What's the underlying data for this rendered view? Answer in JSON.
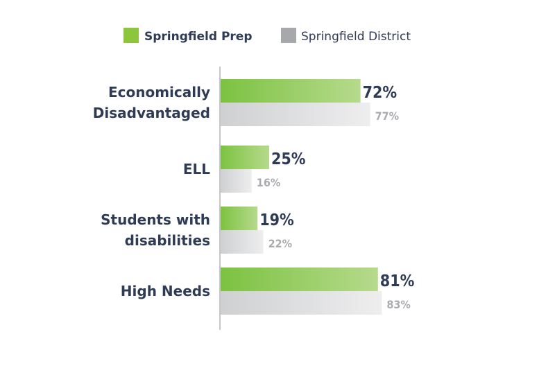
{
  "colors": {
    "primary_start": "#7cc241",
    "primary_end": "#b6da8c",
    "secondary_start": "#cfd0d2",
    "secondary_end": "#eeeeef",
    "legend_primary": "#8cc63f",
    "legend_secondary": "#a6a8ab",
    "axis": "#c6c6c8"
  },
  "chart_data": {
    "type": "bar",
    "orientation": "horizontal",
    "legend_position": "top",
    "grid": false,
    "xlim": [
      0,
      100
    ],
    "categories": [
      [
        "Economically",
        "Disadvantaged"
      ],
      [
        "ELL"
      ],
      [
        "Students with",
        "disabilities"
      ],
      [
        "High Needs"
      ]
    ],
    "series": [
      {
        "name": "Springfield Prep",
        "values": [
          72,
          25,
          19,
          81
        ],
        "labels": [
          "72%",
          "25%",
          "19%",
          "81%"
        ]
      },
      {
        "name": "Springfield District",
        "values": [
          77,
          16,
          22,
          83
        ],
        "labels": [
          "77%",
          "16%",
          "22%",
          "83%"
        ]
      }
    ]
  }
}
